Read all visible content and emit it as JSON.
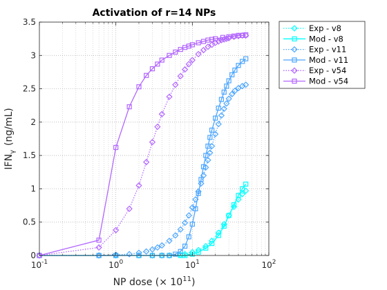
{
  "chart_data": {
    "type": "line",
    "title": "Activation of r=14 NPs",
    "xlabel": "NP dose (× 10",
    "xlabel_exp": "11",
    "xlabel_end": ")",
    "ylabel": "IFN",
    "ylabel_sub": "γ",
    "ylabel_unit": "(ng/mL)",
    "x_scale": "log",
    "xlim": [
      0.1,
      100
    ],
    "ylim": [
      0,
      3.5
    ],
    "x_ticks": [
      0.1,
      1,
      10,
      100
    ],
    "x_tick_labels": [
      {
        "base": "10",
        "exp": "-1"
      },
      {
        "base": "10",
        "exp": "0"
      },
      {
        "base": "10",
        "exp": "1"
      },
      {
        "base": "10",
        "exp": "2"
      }
    ],
    "y_ticks": [
      0,
      0.5,
      1,
      1.5,
      2,
      2.5,
      3,
      3.5
    ],
    "y_tick_labels": [
      "0",
      "0.5",
      "1",
      "1.5",
      "2",
      "2.5",
      "3",
      "3.5"
    ],
    "grid": true,
    "legend_position": "outside-top-right",
    "series": [
      {
        "name": "Exp - v8",
        "color": "#00FFFF",
        "style": "dotted",
        "marker": "diamond",
        "x": [
          0.1,
          0.6,
          1,
          2,
          3,
          4,
          5,
          7,
          8,
          10,
          12,
          15,
          18,
          22,
          26,
          30,
          35,
          40,
          45,
          50
        ],
        "y": [
          0,
          0,
          0,
          0,
          0,
          0,
          0,
          0.01,
          0.02,
          0.05,
          0.08,
          0.14,
          0.22,
          0.34,
          0.47,
          0.6,
          0.73,
          0.84,
          0.92,
          0.97
        ]
      },
      {
        "name": "Mod - v8",
        "color": "#00FFFF",
        "style": "solid",
        "marker": "square",
        "x": [
          0.1,
          0.6,
          1,
          2,
          3,
          4,
          5,
          7,
          8,
          10,
          12,
          15,
          18,
          22,
          26,
          30,
          35,
          40,
          45,
          50
        ],
        "y": [
          0,
          0,
          0,
          0,
          0,
          0,
          0,
          0,
          0,
          0.02,
          0.05,
          0.11,
          0.18,
          0.3,
          0.44,
          0.6,
          0.76,
          0.9,
          1.0,
          1.07
        ]
      },
      {
        "name": "Exp - v11",
        "color": "#4DA6FF",
        "style": "dotted",
        "marker": "diamond",
        "x": [
          0.1,
          0.6,
          1,
          1.5,
          2,
          2.5,
          3,
          3.5,
          4,
          5,
          6,
          7,
          8,
          9,
          10,
          11,
          12,
          13,
          14,
          15,
          16,
          17,
          18,
          20,
          22,
          24,
          26,
          28,
          30,
          33,
          36,
          40,
          45,
          50
        ],
        "y": [
          0,
          0,
          0.01,
          0.02,
          0.04,
          0.06,
          0.09,
          0.12,
          0.15,
          0.22,
          0.3,
          0.39,
          0.49,
          0.6,
          0.72,
          0.84,
          0.96,
          1.08,
          1.2,
          1.32,
          1.43,
          1.54,
          1.64,
          1.82,
          1.97,
          2.1,
          2.2,
          2.28,
          2.35,
          2.42,
          2.47,
          2.51,
          2.54,
          2.56
        ]
      },
      {
        "name": "Mod - v11",
        "color": "#4DA6FF",
        "style": "solid",
        "marker": "square",
        "x": [
          0.1,
          0.6,
          1,
          2,
          3,
          4,
          5,
          6,
          7,
          8,
          9,
          10,
          11,
          12,
          13,
          14,
          15,
          16,
          17,
          18,
          20,
          22,
          24,
          26,
          28,
          30,
          33,
          36,
          40,
          45,
          50
        ],
        "y": [
          0,
          0,
          0,
          0,
          0,
          0,
          0,
          0.02,
          0.06,
          0.14,
          0.28,
          0.47,
          0.7,
          0.93,
          1.14,
          1.33,
          1.5,
          1.64,
          1.77,
          1.88,
          2.06,
          2.21,
          2.34,
          2.45,
          2.54,
          2.62,
          2.71,
          2.78,
          2.85,
          2.91,
          2.95
        ]
      },
      {
        "name": "Exp - v54",
        "color": "#B266FF",
        "style": "dotted",
        "marker": "diamond",
        "x": [
          0.1,
          0.6,
          1,
          1.5,
          2,
          2.5,
          3,
          3.5,
          4,
          5,
          6,
          7,
          8,
          9,
          10,
          12,
          14,
          16,
          18,
          20,
          22,
          24,
          26,
          28,
          30,
          35,
          40,
          45,
          50
        ],
        "y": [
          0,
          0.12,
          0.38,
          0.7,
          1.05,
          1.4,
          1.7,
          1.93,
          2.12,
          2.38,
          2.56,
          2.69,
          2.79,
          2.87,
          2.93,
          3.02,
          3.08,
          3.13,
          3.16,
          3.19,
          3.21,
          3.23,
          3.24,
          3.25,
          3.26,
          3.28,
          3.29,
          3.3,
          3.3
        ]
      },
      {
        "name": "Mod - v54",
        "color": "#B266FF",
        "style": "solid",
        "marker": "square",
        "x": [
          0.1,
          0.6,
          1,
          1.5,
          2,
          2.5,
          3,
          3.5,
          4,
          5,
          6,
          7,
          8,
          9,
          10,
          12,
          14,
          16,
          18,
          20,
          25,
          30,
          35,
          40,
          45,
          50
        ],
        "y": [
          0,
          0.23,
          1.62,
          2.23,
          2.53,
          2.7,
          2.8,
          2.87,
          2.93,
          3.0,
          3.05,
          3.09,
          3.12,
          3.14,
          3.16,
          3.19,
          3.21,
          3.23,
          3.24,
          3.25,
          3.27,
          3.28,
          3.29,
          3.3,
          3.3,
          3.31
        ]
      }
    ]
  }
}
